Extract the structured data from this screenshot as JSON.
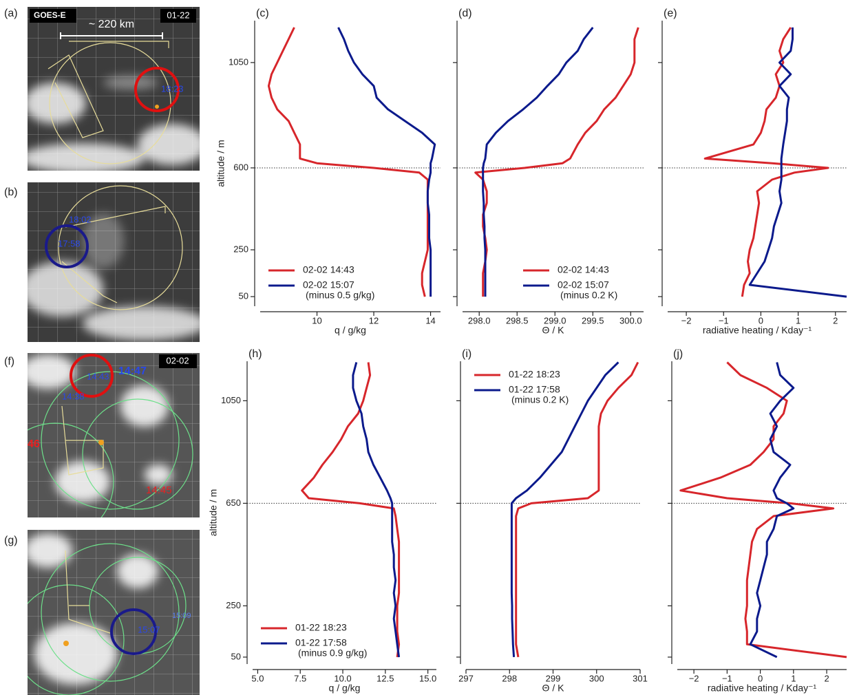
{
  "chart_data": [
    {
      "type": "line",
      "label": "(c)",
      "xlabel": "q / g/kg",
      "ylabel": "altitude / m",
      "xlim": [
        8,
        14.35
      ],
      "xticks": [
        10,
        12,
        14
      ],
      "ylim": [
        9,
        1229
      ],
      "yticks": [
        50,
        250,
        600,
        1050
      ],
      "ytick_labels": true,
      "hline": 600,
      "legend": "lower left",
      "y": [
        50,
        100,
        150,
        200,
        250,
        300,
        350,
        400,
        450,
        500,
        550,
        580,
        600,
        620,
        640,
        700,
        750,
        800,
        850,
        900,
        950,
        1000,
        1050,
        1100,
        1150,
        1200
      ],
      "series": [
        {
          "name": "02-02 14:43",
          "color": "#d7262b",
          "values": [
            13.8,
            13.7,
            13.7,
            13.8,
            13.9,
            13.9,
            13.9,
            13.9,
            13.9,
            13.9,
            13.9,
            13.6,
            12.0,
            10.0,
            9.4,
            9.4,
            9.2,
            9.0,
            8.6,
            8.4,
            8.3,
            8.4,
            8.6,
            8.8,
            9.0,
            9.2
          ]
        },
        {
          "name": "02-02 15:07",
          "name_note": "(minus 0.5 g/kg)",
          "color": "#0b1a8c",
          "values": [
            14.0,
            14.0,
            14.0,
            14.0,
            14.0,
            13.95,
            13.95,
            13.95,
            13.9,
            13.9,
            13.95,
            14.0,
            14.0,
            14.0,
            14.05,
            14.15,
            13.7,
            13.1,
            12.5,
            12.1,
            12.0,
            11.6,
            11.3,
            11.1,
            10.95,
            10.75
          ]
        }
      ]
    },
    {
      "type": "line",
      "label": "(d)",
      "xlabel": "Θ / K",
      "xlim": [
        297.78,
        300.17
      ],
      "xticks": [
        {
          "value": 298,
          "label": "298.0"
        },
        298.5,
        {
          "value": 299,
          "label": "299.0"
        },
        299.5,
        {
          "value": 300,
          "label": "300.0"
        }
      ],
      "ylim": [
        9,
        1229
      ],
      "yticks": [
        50,
        250,
        600,
        1050
      ],
      "ytick_labels": false,
      "hline": 600,
      "legend": "lower right",
      "y": [
        50,
        100,
        150,
        200,
        250,
        300,
        350,
        400,
        450,
        500,
        550,
        580,
        600,
        620,
        640,
        700,
        750,
        800,
        850,
        900,
        950,
        1000,
        1050,
        1100,
        1150,
        1200
      ],
      "series": [
        {
          "name": "02-02 14:43",
          "color": "#d7262b",
          "values": [
            298.05,
            298.05,
            298.05,
            298.08,
            298.1,
            298.08,
            298.05,
            298.05,
            298.1,
            298.1,
            298.05,
            297.95,
            298.6,
            299.1,
            299.2,
            299.3,
            299.4,
            299.55,
            299.65,
            299.8,
            299.9,
            300.0,
            300.05,
            300.05,
            300.05,
            300.1
          ]
        },
        {
          "name": "02-02 15:07",
          "name_note": "(minus 0.2 K)",
          "color": "#0b1a8c",
          "values": [
            298.08,
            298.08,
            298.08,
            298.08,
            298.08,
            298.07,
            298.07,
            298.06,
            298.06,
            298.05,
            298.05,
            298.05,
            298.05,
            298.06,
            298.08,
            298.1,
            298.22,
            298.38,
            298.58,
            298.76,
            298.9,
            299.05,
            299.15,
            299.3,
            299.38,
            299.5
          ]
        }
      ]
    },
    {
      "type": "line",
      "label": "(e)",
      "xlabel": "radiative heating / Kday⁻¹",
      "xlim": [
        -2.5,
        2.3
      ],
      "xticks": [
        {
          "value": -2,
          "label": "−2"
        },
        {
          "value": -1,
          "label": "−1"
        },
        0,
        1,
        2
      ],
      "ylim": [
        9,
        1229
      ],
      "yticks": [
        50,
        250,
        600,
        1050
      ],
      "ytick_labels": false,
      "hline": 600,
      "y": [
        50,
        100,
        150,
        200,
        250,
        300,
        350,
        400,
        450,
        500,
        550,
        580,
        600,
        620,
        640,
        700,
        750,
        800,
        850,
        900,
        950,
        1000,
        1050,
        1100,
        1150,
        1200
      ],
      "series": [
        {
          "color": "#d7262b",
          "values": [
            -0.5,
            -0.45,
            -0.3,
            -0.35,
            -0.3,
            -0.2,
            -0.15,
            -0.1,
            -0.05,
            -0.1,
            0.3,
            0.9,
            1.8,
            0.3,
            -1.5,
            -0.2,
            0.0,
            0.1,
            0.15,
            0.4,
            0.5,
            0.4,
            0.6,
            0.5,
            0.6,
            0.8
          ]
        },
        {
          "color": "#0b1a8c",
          "values": [
            2.3,
            -0.3,
            -0.1,
            0.1,
            0.2,
            0.3,
            0.35,
            0.45,
            0.55,
            0.5,
            0.55,
            0.55,
            0.55,
            0.55,
            0.55,
            0.6,
            0.65,
            0.7,
            0.7,
            0.75,
            0.5,
            0.8,
            0.5,
            0.8,
            0.85,
            0.85
          ]
        }
      ]
    },
    {
      "type": "line",
      "label": "(h)",
      "xlabel": "q / g/kg",
      "ylabel": "altitude / m",
      "xlim": [
        4.7,
        15.5
      ],
      "xticks": [
        {
          "value": 5,
          "label": "5.0"
        },
        7.5,
        {
          "value": 10,
          "label": "10.0"
        },
        12.5,
        {
          "value": 15,
          "label": "15.0"
        }
      ],
      "ylim": [
        23,
        1204
      ],
      "yticks": [
        50,
        250,
        650,
        1050
      ],
      "ytick_labels": true,
      "hline": 650,
      "legend": "lower left",
      "y": [
        50,
        100,
        150,
        200,
        250,
        300,
        350,
        400,
        450,
        500,
        550,
        600,
        630,
        650,
        670,
        700,
        750,
        800,
        850,
        900,
        950,
        1000,
        1050,
        1100,
        1150,
        1200
      ],
      "series": [
        {
          "name": "01-22 18:23",
          "color": "#d7262b",
          "values": [
            13.2,
            13.3,
            13.2,
            13.2,
            13.2,
            13.3,
            13.3,
            13.3,
            13.3,
            13.3,
            13.2,
            13.1,
            13.0,
            11.0,
            8.0,
            7.6,
            8.3,
            8.8,
            9.4,
            9.9,
            10.3,
            10.9,
            11.2,
            11.4,
            11.6,
            11.5
          ]
        },
        {
          "name": "01-22 17:58",
          "name_note": "(minus 0.9 g/kg)",
          "color": "#0b1a8c",
          "values": [
            13.3,
            13.2,
            13.1,
            13.0,
            13.1,
            13.0,
            13.1,
            13.0,
            13.0,
            12.9,
            12.9,
            12.9,
            12.9,
            12.9,
            12.8,
            12.6,
            12.2,
            11.8,
            11.5,
            11.4,
            11.2,
            11.1,
            10.8,
            10.6,
            10.6,
            10.8
          ]
        }
      ]
    },
    {
      "type": "line",
      "label": "(i)",
      "xlabel": "Θ / K",
      "xlim": [
        297,
        301
      ],
      "xticks": [
        297,
        298,
        299,
        300,
        301
      ],
      "ylim": [
        23,
        1204
      ],
      "yticks": [
        50,
        250,
        650,
        1050
      ],
      "ytick_labels": false,
      "hline": 650,
      "legend": "upper left",
      "y": [
        50,
        100,
        150,
        200,
        250,
        300,
        350,
        400,
        450,
        500,
        550,
        600,
        630,
        650,
        670,
        700,
        750,
        800,
        850,
        900,
        950,
        1000,
        1050,
        1100,
        1150,
        1200
      ],
      "series": [
        {
          "name": "01-22 18:23",
          "color": "#d7262b",
          "values": [
            298.2,
            298.15,
            298.15,
            298.15,
            298.15,
            298.15,
            298.15,
            298.15,
            298.15,
            298.15,
            298.15,
            298.15,
            298.2,
            298.5,
            299.8,
            300.05,
            300.05,
            300.05,
            300.05,
            300.05,
            300.05,
            300.1,
            300.25,
            300.5,
            300.8,
            300.95
          ]
        },
        {
          "name": "01-22 17:58",
          "name_note": "(minus 0.2 K)",
          "color": "#0b1a8c",
          "values": [
            298.1,
            298.08,
            298.07,
            298.06,
            298.06,
            298.05,
            298.05,
            298.05,
            298.05,
            298.05,
            298.05,
            298.05,
            298.05,
            298.05,
            298.15,
            298.4,
            298.7,
            298.95,
            299.2,
            299.35,
            299.5,
            299.65,
            299.8,
            300.0,
            300.2,
            300.5
          ]
        }
      ]
    },
    {
      "type": "line",
      "label": "(j)",
      "xlabel": "radiative heating / Kday⁻¹",
      "xlim": [
        -2.5,
        2.6
      ],
      "xticks": [
        {
          "value": -2,
          "label": "−2"
        },
        {
          "value": -1,
          "label": "−1"
        },
        0,
        1,
        2
      ],
      "ylim": [
        23,
        1204
      ],
      "yticks": [
        50,
        250,
        650,
        1050
      ],
      "ytick_labels": false,
      "hline": 650,
      "y": [
        50,
        100,
        150,
        200,
        250,
        300,
        350,
        400,
        450,
        500,
        550,
        600,
        630,
        650,
        670,
        700,
        750,
        800,
        850,
        900,
        950,
        1000,
        1050,
        1100,
        1150,
        1200
      ],
      "series": [
        {
          "color": "#d7262b",
          "values": [
            2.6,
            -0.4,
            -0.4,
            -0.45,
            -0.4,
            -0.4,
            -0.4,
            -0.35,
            -0.3,
            -0.25,
            -0.1,
            0.4,
            2.2,
            0.9,
            -1.0,
            -2.4,
            -1.2,
            -0.3,
            0.1,
            0.4,
            0.4,
            0.7,
            0.8,
            0.2,
            -0.6,
            -1.0
          ]
        },
        {
          "color": "#0b1a8c",
          "values": [
            0.5,
            -0.3,
            -0.1,
            -0.1,
            0.0,
            -0.1,
            0.0,
            0.1,
            0.2,
            0.2,
            0.4,
            0.5,
            1.0,
            0.8,
            0.5,
            0.4,
            0.6,
            0.9,
            0.4,
            0.3,
            0.5,
            0.3,
            0.6,
            1.0,
            0.6,
            0.5
          ]
        }
      ]
    }
  ],
  "images": [
    {
      "label": "(a)",
      "badge": "GOES-E",
      "date": "01-22",
      "scale": "~ 220 km",
      "times": [
        "18:23"
      ]
    },
    {
      "label": "(b)",
      "times": [
        "18:02",
        "17:58"
      ]
    },
    {
      "label": "(f)",
      "date": "02-02",
      "times": [
        "14:43",
        "14:47",
        "14:38"
      ],
      "red_times": [
        "46",
        "14:45"
      ]
    },
    {
      "label": "(g)",
      "times": [
        "15:07",
        "15:09"
      ]
    }
  ]
}
